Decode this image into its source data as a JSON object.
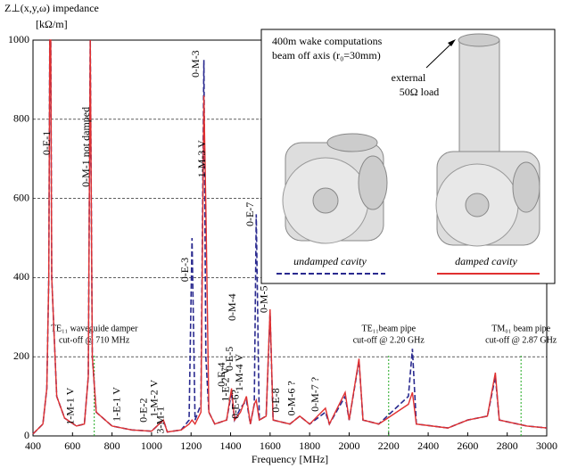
{
  "chart_data": {
    "type": "line",
    "y_label": [
      "Z⊥(x,y,ω) impedance",
      "[kΩ/m]"
    ],
    "x_label": "Frequency [MHz]",
    "x": [
      400,
      450,
      470,
      480,
      485,
      490,
      495,
      520,
      560,
      620,
      660,
      680,
      690,
      700,
      720,
      800,
      900,
      1000,
      1060,
      1080,
      1150,
      1190,
      1205,
      1220,
      1250,
      1265,
      1275,
      1290,
      1320,
      1380,
      1405,
      1420,
      1450,
      1480,
      1500,
      1520,
      1530,
      1545,
      1580,
      1600,
      1615,
      1700,
      1750,
      1800,
      1880,
      1900,
      1980,
      2000,
      2050,
      2070,
      2150,
      2300,
      2320,
      2340,
      2500,
      2600,
      2700,
      2740,
      2760,
      2900,
      3000
    ],
    "series": [
      {
        "name": "undamped cavity",
        "color": "#2a2a8f",
        "dashed": true,
        "values": [
          5,
          30,
          120,
          400,
          1000,
          1000,
          400,
          100,
          45,
          25,
          30,
          150,
          1000,
          200,
          60,
          25,
          15,
          12,
          40,
          10,
          15,
          40,
          500,
          40,
          80,
          950,
          200,
          60,
          30,
          40,
          110,
          40,
          70,
          90,
          30,
          80,
          560,
          40,
          50,
          310,
          40,
          30,
          50,
          30,
          60,
          30,
          100,
          40,
          190,
          40,
          30,
          100,
          220,
          30,
          20,
          40,
          50,
          150,
          40,
          25,
          20
        ]
      },
      {
        "name": "damped cavity",
        "color": "#e03030",
        "dashed": false,
        "values": [
          5,
          30,
          120,
          400,
          1000,
          1000,
          400,
          100,
          45,
          25,
          30,
          150,
          1000,
          200,
          60,
          25,
          15,
          12,
          40,
          10,
          15,
          30,
          40,
          30,
          60,
          860,
          580,
          60,
          30,
          40,
          120,
          40,
          60,
          100,
          30,
          80,
          90,
          40,
          50,
          320,
          40,
          30,
          50,
          30,
          70,
          30,
          110,
          40,
          195,
          40,
          30,
          80,
          110,
          30,
          20,
          40,
          50,
          160,
          40,
          25,
          20
        ]
      }
    ],
    "xlim": [
      400,
      3000
    ],
    "xticks": [
      400,
      600,
      800,
      1000,
      1200,
      1400,
      1600,
      1800,
      2000,
      2200,
      2400,
      2600,
      2800,
      3000
    ],
    "ylim": [
      0,
      1000
    ],
    "yticks": [
      0,
      200,
      400,
      600,
      800,
      1000
    ],
    "grid": true,
    "annotations": [
      {
        "text": "0-E-1",
        "x": 500,
        "y": 740
      },
      {
        "text": "0-M-1 not damped",
        "x": 700,
        "y": 730
      },
      {
        "text": "0-M-3",
        "x": 1255,
        "y": 940
      },
      {
        "text": "1-M-3 V",
        "x": 1285,
        "y": 700
      },
      {
        "text": "0-E-3",
        "x": 1200,
        "y": 420
      },
      {
        "text": "0-E-7",
        "x": 1530,
        "y": 560
      },
      {
        "text": "0-M-5",
        "x": 1600,
        "y": 345
      },
      {
        "text": "0-M-4",
        "x": 1440,
        "y": 325
      },
      {
        "text": "1-M-4 V",
        "x": 1475,
        "y": 160
      },
      {
        "text": "0-E-5",
        "x": 1425,
        "y": 195
      },
      {
        "text": "1-E-2 V",
        "x": 1405,
        "y": 130
      },
      {
        "text": "0-E-4",
        "x": 1385,
        "y": 155
      },
      {
        "text": "0-E-6?",
        "x": 1455,
        "y": 80
      },
      {
        "text": "0-E-8",
        "x": 1660,
        "y": 90
      },
      {
        "text": "0-M-6 ?",
        "x": 1740,
        "y": 95
      },
      {
        "text": "0-M-7 ?",
        "x": 1860,
        "y": 105
      },
      {
        "text": "1-M-1 V",
        "x": 620,
        "y": 75
      },
      {
        "text": "1-E-1 V",
        "x": 855,
        "y": 80
      },
      {
        "text": "0-E-2",
        "x": 990,
        "y": 65
      },
      {
        "text": "1-M-2 V",
        "x": 1045,
        "y": 95
      },
      {
        "text": "3-M-1",
        "x": 1075,
        "y": 40
      }
    ],
    "cutoffs": [
      {
        "x": 710,
        "label": [
          "TE₁₁ waveguide damper",
          "cut-off @ 710 MHz"
        ]
      },
      {
        "x": 2200,
        "label": [
          "TE₁₁beam pipe",
          "cut-off @ 2.20 GHz"
        ]
      },
      {
        "x": 2870,
        "label": [
          "TM₀₁ beam pipe",
          "cut-off @ 2.87 GHz"
        ]
      }
    ],
    "inset": {
      "title": [
        "400m wake computations",
        "beam off axis (r₀=30mm)"
      ],
      "load": [
        "external",
        "50Ω load"
      ]
    }
  }
}
